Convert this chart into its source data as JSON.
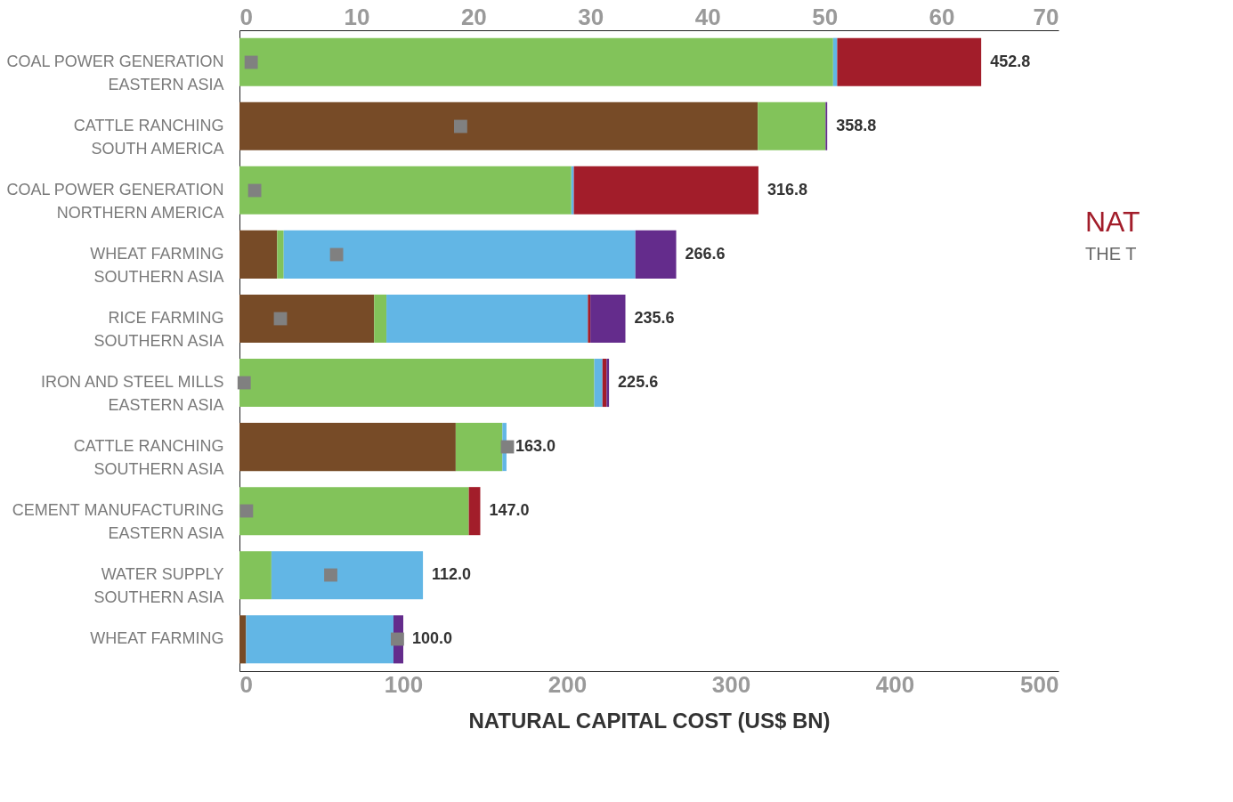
{
  "chart_data": {
    "type": "bar",
    "orientation": "horizontal",
    "stacked": true,
    "xlabel": "NATURAL CAPITAL COST (US$ BN)",
    "categories": [
      "COAL POWER GENERATION\nEASTERN ASIA",
      "CATTLE RANCHING\nSOUTH AMERICA",
      "COAL POWER GENERATION\nNORTHERN AMERICA",
      "WHEAT FARMING\nSOUTHERN ASIA",
      "RICE FARMING\nSOUTHERN ASIA",
      "IRON AND STEEL MILLS\nEASTERN ASIA",
      "CATTLE RANCHING\nSOUTHERN ASIA",
      "CEMENT MANUFACTURING\nEASTERN ASIA",
      "WATER SUPPLY\nSOUTHERN ASIA",
      "WHEAT FARMING"
    ],
    "series": [
      {
        "color": "#774b27",
        "values": [
          0,
          316.4,
          0,
          23.0,
          82.2,
          0,
          132.0,
          0,
          0,
          4.0
        ]
      },
      {
        "color": "#82c35a",
        "values": [
          362.4,
          41.4,
          202.6,
          4.0,
          7.5,
          216.6,
          28.5,
          140.0,
          19.5,
          0
        ]
      },
      {
        "color": "#62b6e5",
        "values": [
          2.5,
          0,
          1.5,
          214.7,
          123.0,
          5.0,
          2.5,
          0,
          92.5,
          90.0
        ]
      },
      {
        "color": "#a21d2a",
        "values": [
          87.9,
          0,
          112.7,
          0,
          1.5,
          2.5,
          0,
          7.0,
          0,
          0
        ]
      },
      {
        "color": "#642c8c",
        "values": [
          0,
          1.0,
          0,
          24.9,
          21.4,
          1.5,
          0,
          0,
          0,
          6.0
        ]
      },
      {
        "type": "scatter",
        "axis": "x2",
        "marker": "square",
        "color": "#808080",
        "values": [
          1.0,
          18.9,
          1.3,
          8.3,
          3.5,
          0.4,
          22.9,
          0.6,
          7.8,
          13.5
        ]
      }
    ],
    "totals": [
      "452.8",
      "358.8",
      "316.8",
      "266.6",
      "235.6",
      "225.6",
      "163.0",
      "147.0",
      "112.0",
      "100.0"
    ],
    "xlim": [
      0,
      500
    ],
    "xticks": [
      0,
      100,
      200,
      300,
      400,
      500
    ],
    "x2lim": [
      0,
      70
    ],
    "x2ticks": [
      0,
      10,
      20,
      30,
      40,
      50,
      60,
      70
    ],
    "annotations": [
      "NAT",
      "THE T"
    ],
    "grid": false,
    "legend": false
  }
}
